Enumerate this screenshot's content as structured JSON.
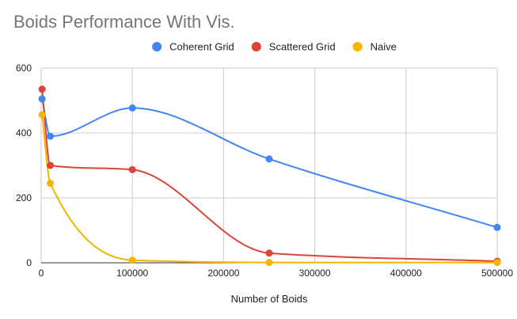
{
  "chart_data": {
    "type": "line",
    "title": "Boids Performance With Vis.",
    "xlabel": "Number of Boids",
    "ylabel": "",
    "x": [
      1000,
      10000,
      100000,
      250000,
      500000
    ],
    "xlim": [
      0,
      500000
    ],
    "ylim": [
      0,
      600
    ],
    "x_ticks": [
      "0",
      "100000",
      "200000",
      "300000",
      "400000",
      "500000"
    ],
    "y_ticks": [
      "0",
      "200",
      "400",
      "600"
    ],
    "grid": true,
    "legend_position": "top",
    "series": [
      {
        "name": "Coherent Grid",
        "color": "#4285F4",
        "values": [
          505,
          390,
          477,
          320,
          109
        ]
      },
      {
        "name": "Scattered Grid",
        "color": "#DB4437",
        "values": [
          535,
          300,
          287,
          30,
          5
        ]
      },
      {
        "name": "Naive",
        "color": "#F4B400",
        "values": [
          456,
          245,
          8,
          1,
          1
        ]
      }
    ]
  }
}
